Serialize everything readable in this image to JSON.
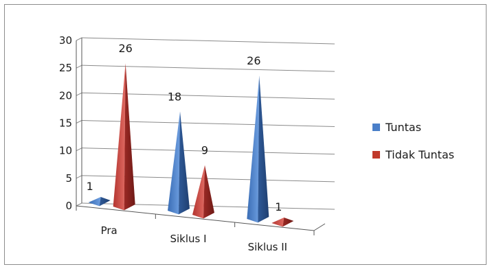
{
  "chart_data": {
    "type": "bar",
    "style": "3d-pyramid",
    "categories": [
      "Pra",
      "Siklus I",
      "Siklus II"
    ],
    "series": [
      {
        "name": "Tuntas",
        "values": [
          1,
          18,
          26
        ],
        "color": "#4a7fc9"
      },
      {
        "name": "Tidak Tuntas",
        "values": [
          26,
          9,
          1
        ],
        "color": "#c0392b"
      }
    ],
    "data_labels": [
      [
        "1",
        "18",
        "26"
      ],
      [
        "26",
        "9",
        "1"
      ]
    ],
    "yticks": [
      "0",
      "5",
      "10",
      "15",
      "20",
      "25",
      "30"
    ],
    "ylim": [
      0,
      30
    ],
    "grid": true,
    "legend": "right"
  }
}
